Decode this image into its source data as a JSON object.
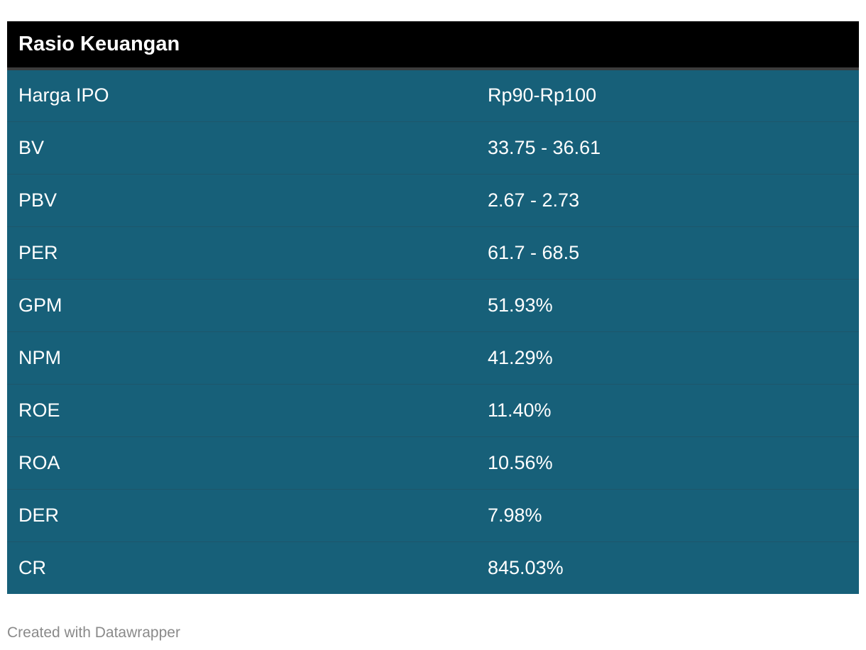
{
  "chart_data": {
    "type": "table",
    "title": "Rasio Keuangan",
    "rows": [
      {
        "label": "Harga IPO",
        "value": "Rp90-Rp100"
      },
      {
        "label": "BV",
        "value": "33.75 - 36.61"
      },
      {
        "label": "PBV",
        "value": "2.67 - 2.73"
      },
      {
        "label": "PER",
        "value": "61.7 - 68.5"
      },
      {
        "label": "GPM",
        "value": "51.93%"
      },
      {
        "label": "NPM",
        "value": "41.29%"
      },
      {
        "label": "ROE",
        "value": "11.40%"
      },
      {
        "label": "ROA",
        "value": "10.56%"
      },
      {
        "label": "DER",
        "value": "7.98%"
      },
      {
        "label": "CR",
        "value": "845.03%"
      }
    ]
  },
  "footer": {
    "credit": "Created with Datawrapper"
  },
  "colors": {
    "header_bg": "#000000",
    "row_bg": "#176079",
    "text": "#ffffff",
    "credit_text": "#8a8a8a"
  }
}
